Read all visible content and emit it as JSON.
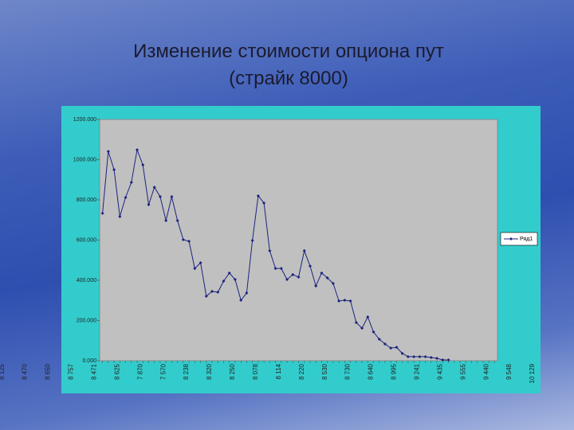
{
  "chart_data": {
    "type": "line",
    "title": "Изменение стоимости опциона пут",
    "subtitle": "(страйк 8000)",
    "categories": [
      "8 003",
      null,
      "7 940",
      null,
      "7 730",
      null,
      "7 948",
      null,
      "7 610",
      null,
      "7 726",
      null,
      "7 735",
      null,
      "8 125",
      null,
      "8 470",
      null,
      "8 650",
      null,
      "8 757",
      null,
      "8 471",
      null,
      "8 625",
      null,
      "7 870",
      null,
      "7 570",
      null,
      "8 238",
      null,
      "8 320",
      null,
      "8 250",
      null,
      "8 078",
      null,
      "8 114",
      null,
      "8 220",
      null,
      "8 530",
      null,
      "8 730",
      null,
      "8 640",
      null,
      "8 995",
      null,
      "9 241",
      null,
      "9 435",
      null,
      "9 555",
      null,
      "9 440",
      null,
      "9 548",
      null,
      "10 129",
      null,
      null,
      null,
      null,
      null,
      null,
      null,
      null
    ],
    "series": [
      {
        "name": "Ряд1",
        "color": "#1a237e",
        "values": [
          733,
          1041,
          950,
          717,
          812,
          887,
          1049,
          974,
          776,
          863,
          816,
          697,
          816,
          697,
          602,
          594,
          459,
          487,
          321,
          345,
          341,
          396,
          436,
          404,
          301,
          337,
          598,
          820,
          784,
          547,
          459,
          459,
          404,
          428,
          416,
          547,
          471,
          372,
          436,
          412,
          384,
          297,
          301,
          297,
          190,
          162,
          218,
          143,
          107,
          83,
          63,
          67,
          36,
          20,
          20,
          20,
          20,
          16,
          12,
          4,
          4,
          null,
          null,
          null,
          null,
          null,
          null,
          null,
          null
        ]
      }
    ],
    "ylim": [
      0,
      1200
    ],
    "yticks": [
      {
        "value": 0,
        "label": "0.000"
      },
      {
        "value": 200,
        "label": "200.000"
      },
      {
        "value": 400,
        "label": "400.000"
      },
      {
        "value": 600,
        "label": "600.000"
      },
      {
        "value": 800,
        "label": "800.000"
      },
      {
        "value": 1000,
        "label": "1000.000"
      },
      {
        "value": 1200,
        "label": "1200.000"
      }
    ],
    "legend": "right"
  }
}
